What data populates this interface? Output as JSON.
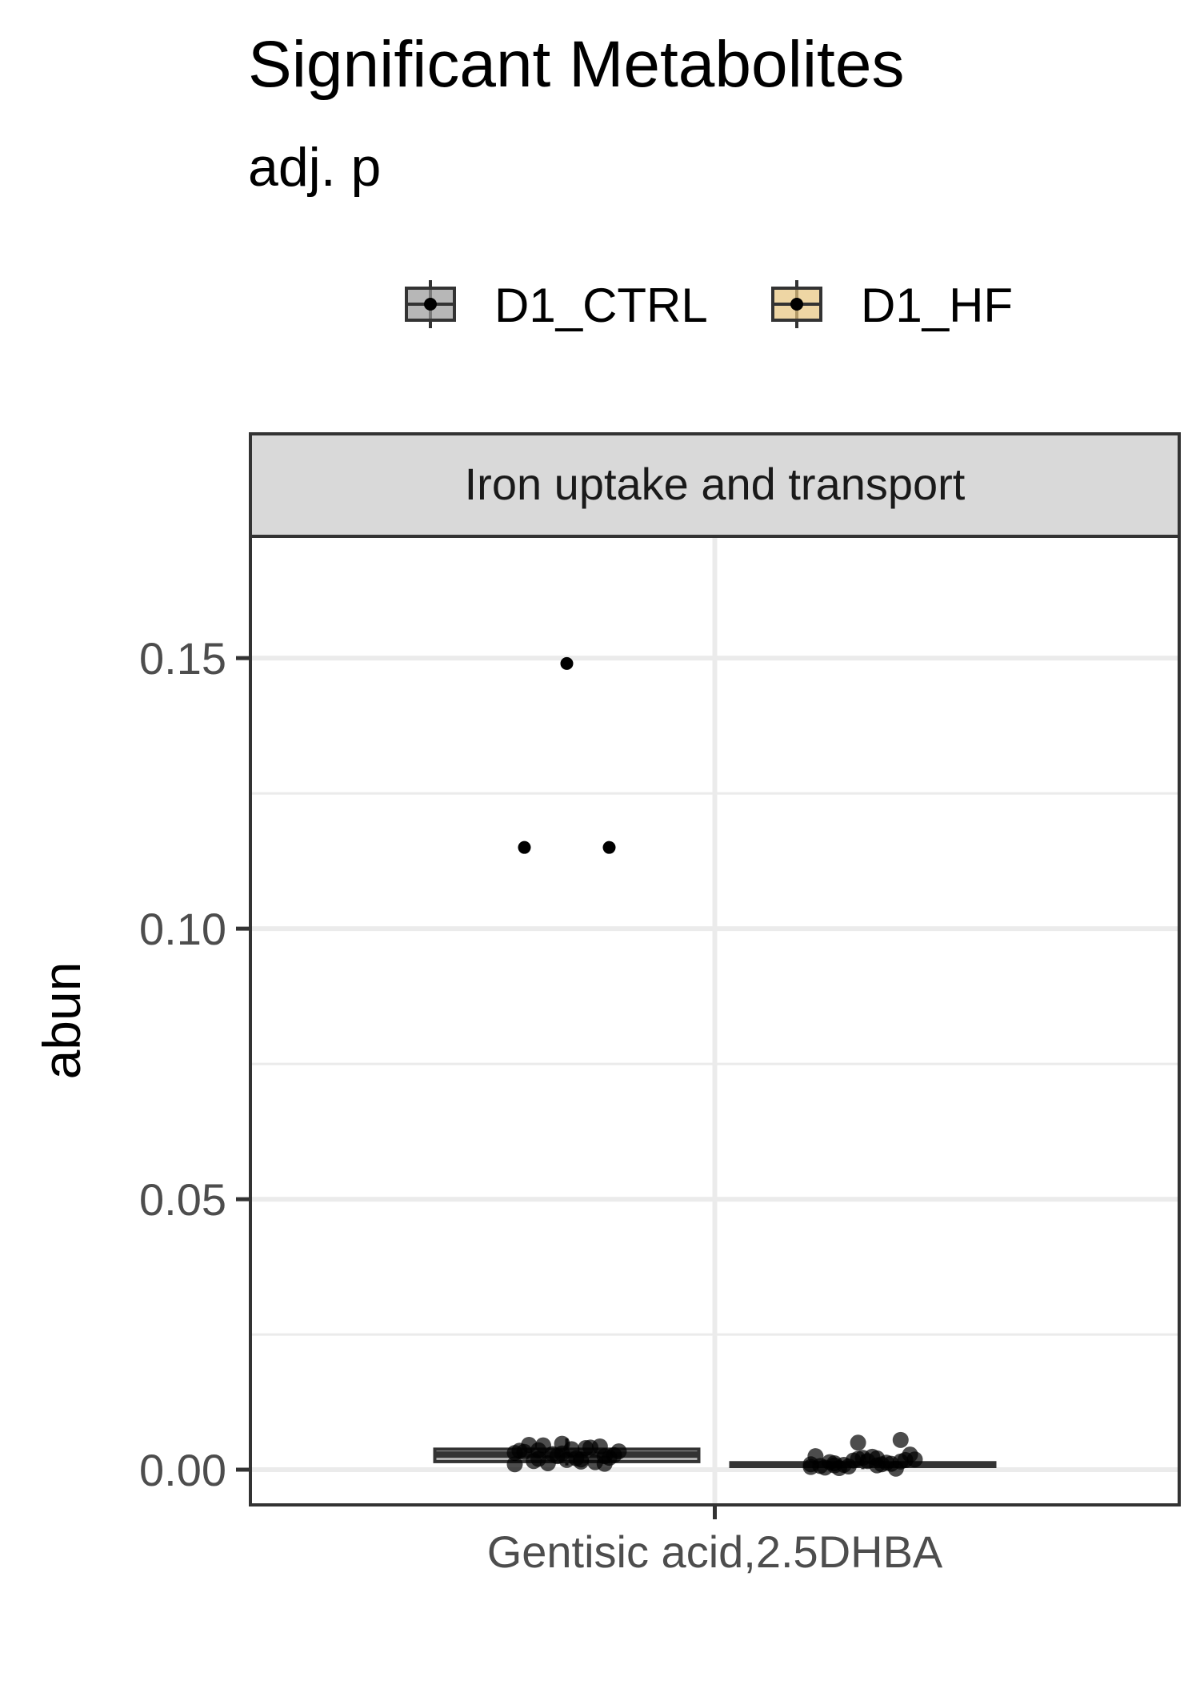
{
  "chart_data": {
    "type": "boxplot",
    "title": "Significant Metabolites",
    "subtitle": "adj. p",
    "ylabel": "abun",
    "xlabel": "",
    "facet_label": "Iron uptake and transport",
    "categories": [
      "Gentisic acid,2.5DHBA"
    ],
    "ylim": [
      -0.0065,
      0.1725
    ],
    "yticks": [
      0.0,
      0.05,
      0.1,
      0.15
    ],
    "ytick_labels": [
      "0.00",
      "0.05",
      "0.10",
      "0.15"
    ],
    "grid": true,
    "legend": {
      "position": "top"
    },
    "series": [
      {
        "name": "D1_CTRL",
        "fill": "#999999",
        "box": {
          "q1": 0.0015,
          "median": 0.0028,
          "q3": 0.0038,
          "whisker_low": 0.0008,
          "whisker_high": 0.0058
        },
        "outliers": [
          0.149,
          0.115,
          0.115
        ],
        "points": [
          0.001,
          0.0015,
          0.002,
          0.0025,
          0.003,
          0.0035,
          0.004,
          0.0045,
          0.0022,
          0.0018,
          0.0033,
          0.0041,
          0.0012,
          0.0027,
          0.0038,
          0.0046,
          0.0014,
          0.0029,
          0.0034,
          0.0021,
          0.0016,
          0.0043,
          0.0025,
          0.0031,
          0.0019,
          0.0036,
          0.0011,
          0.0048
        ]
      },
      {
        "name": "D1_HF",
        "fill": "#E7C57E",
        "box": {
          "q1": 0.0006,
          "median": 0.0009,
          "q3": 0.0013,
          "whisker_low": 0.0001,
          "whisker_high": 0.0028
        },
        "outliers": [],
        "points": [
          0.0005,
          0.0008,
          0.0012,
          0.0015,
          0.002,
          0.0025,
          0.001,
          0.0003,
          0.0018,
          0.0022,
          0.0007,
          0.0013,
          0.0009,
          0.0028,
          0.0016,
          0.0004,
          0.0011,
          0.0006,
          0.0019,
          0.0024,
          0.0014,
          0.0002,
          0.0017,
          0.001,
          0.0021,
          0.0008,
          0.0055,
          0.005
        ]
      }
    ]
  }
}
